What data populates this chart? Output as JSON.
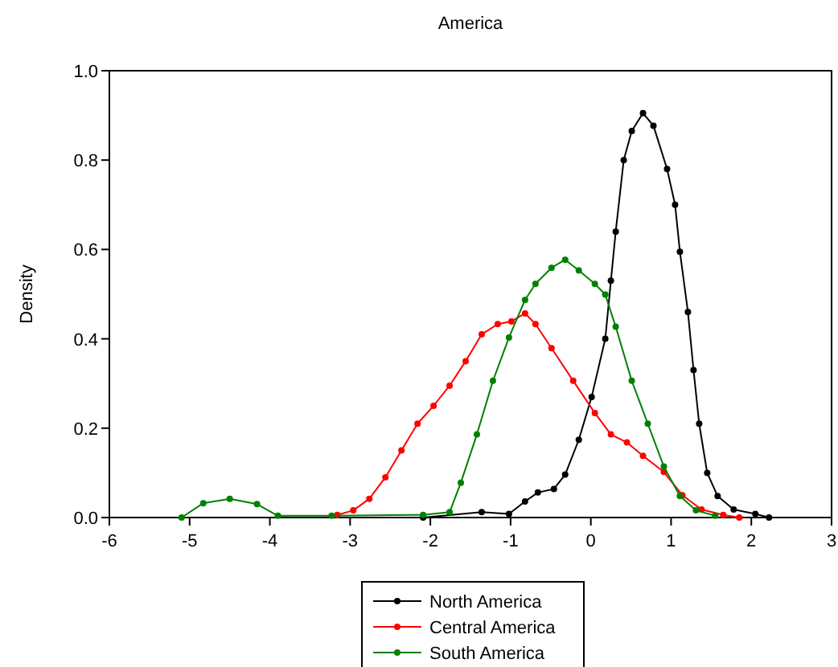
{
  "chart_data": {
    "type": "line",
    "title": "America",
    "ylabel": "Density",
    "xlim": [
      -6,
      3
    ],
    "xticks": [
      -6,
      -5,
      -4,
      -3,
      -2,
      -1,
      0,
      1,
      2,
      3
    ],
    "ylim": [
      0,
      1
    ],
    "yticks": [
      {
        "value": 0,
        "label": "0.0"
      },
      0.2,
      0.4,
      0.6,
      0.8,
      {
        "value": 1,
        "label": "1.0"
      }
    ],
    "grid": false,
    "legend": "bottom",
    "marker": "circle",
    "line_style": "solid",
    "series": [
      {
        "name": "North America",
        "color": "#000000",
        "x": [
          -2.09,
          -1.36,
          -1.02,
          -0.82,
          -0.66,
          -0.46,
          -0.32,
          -0.15,
          0.01,
          0.18,
          0.25,
          0.31,
          0.41,
          0.51,
          0.65,
          0.78,
          0.95,
          1.05,
          1.11,
          1.21,
          1.28,
          1.35,
          1.45,
          1.58,
          1.78,
          2.05,
          2.22
        ],
        "values": [
          0,
          0.012,
          0.008,
          0.036,
          0.056,
          0.064,
          0.096,
          0.174,
          0.27,
          0.4,
          0.53,
          0.64,
          0.8,
          0.865,
          0.905,
          0.877,
          0.78,
          0.7,
          0.595,
          0.46,
          0.33,
          0.21,
          0.1,
          0.048,
          0.018,
          0.008,
          0
        ]
      },
      {
        "name": "Central America",
        "color": "#ff0000",
        "x": [
          -3.16,
          -2.96,
          -2.76,
          -2.56,
          -2.36,
          -2.16,
          -1.96,
          -1.76,
          -1.56,
          -1.36,
          -1.16,
          -0.99,
          -0.82,
          -0.69,
          -0.49,
          -0.22,
          0.05,
          0.25,
          0.45,
          0.65,
          0.91,
          1.14,
          1.38,
          1.65,
          1.85
        ],
        "values": [
          0.006,
          0.016,
          0.042,
          0.09,
          0.15,
          0.21,
          0.25,
          0.295,
          0.35,
          0.41,
          0.433,
          0.439,
          0.457,
          0.433,
          0.379,
          0.306,
          0.234,
          0.186,
          0.168,
          0.138,
          0.102,
          0.05,
          0.018,
          0.006,
          0
        ]
      },
      {
        "name": "South America",
        "color": "#008000",
        "x": [
          -5.1,
          -4.83,
          -4.5,
          -4.16,
          -3.9,
          -3.23,
          -2.09,
          -1.76,
          -1.62,
          -1.42,
          -1.22,
          -1.02,
          -0.82,
          -0.69,
          -0.49,
          -0.32,
          -0.15,
          0.05,
          0.18,
          0.31,
          0.51,
          0.71,
          0.91,
          1.11,
          1.31,
          1.55
        ],
        "values": [
          0,
          0.032,
          0.042,
          0.03,
          0.004,
          0.004,
          0.006,
          0.012,
          0.078,
          0.186,
          0.306,
          0.403,
          0.487,
          0.523,
          0.559,
          0.577,
          0.553,
          0.523,
          0.499,
          0.427,
          0.306,
          0.21,
          0.114,
          0.048,
          0.016,
          0.004
        ]
      }
    ]
  }
}
